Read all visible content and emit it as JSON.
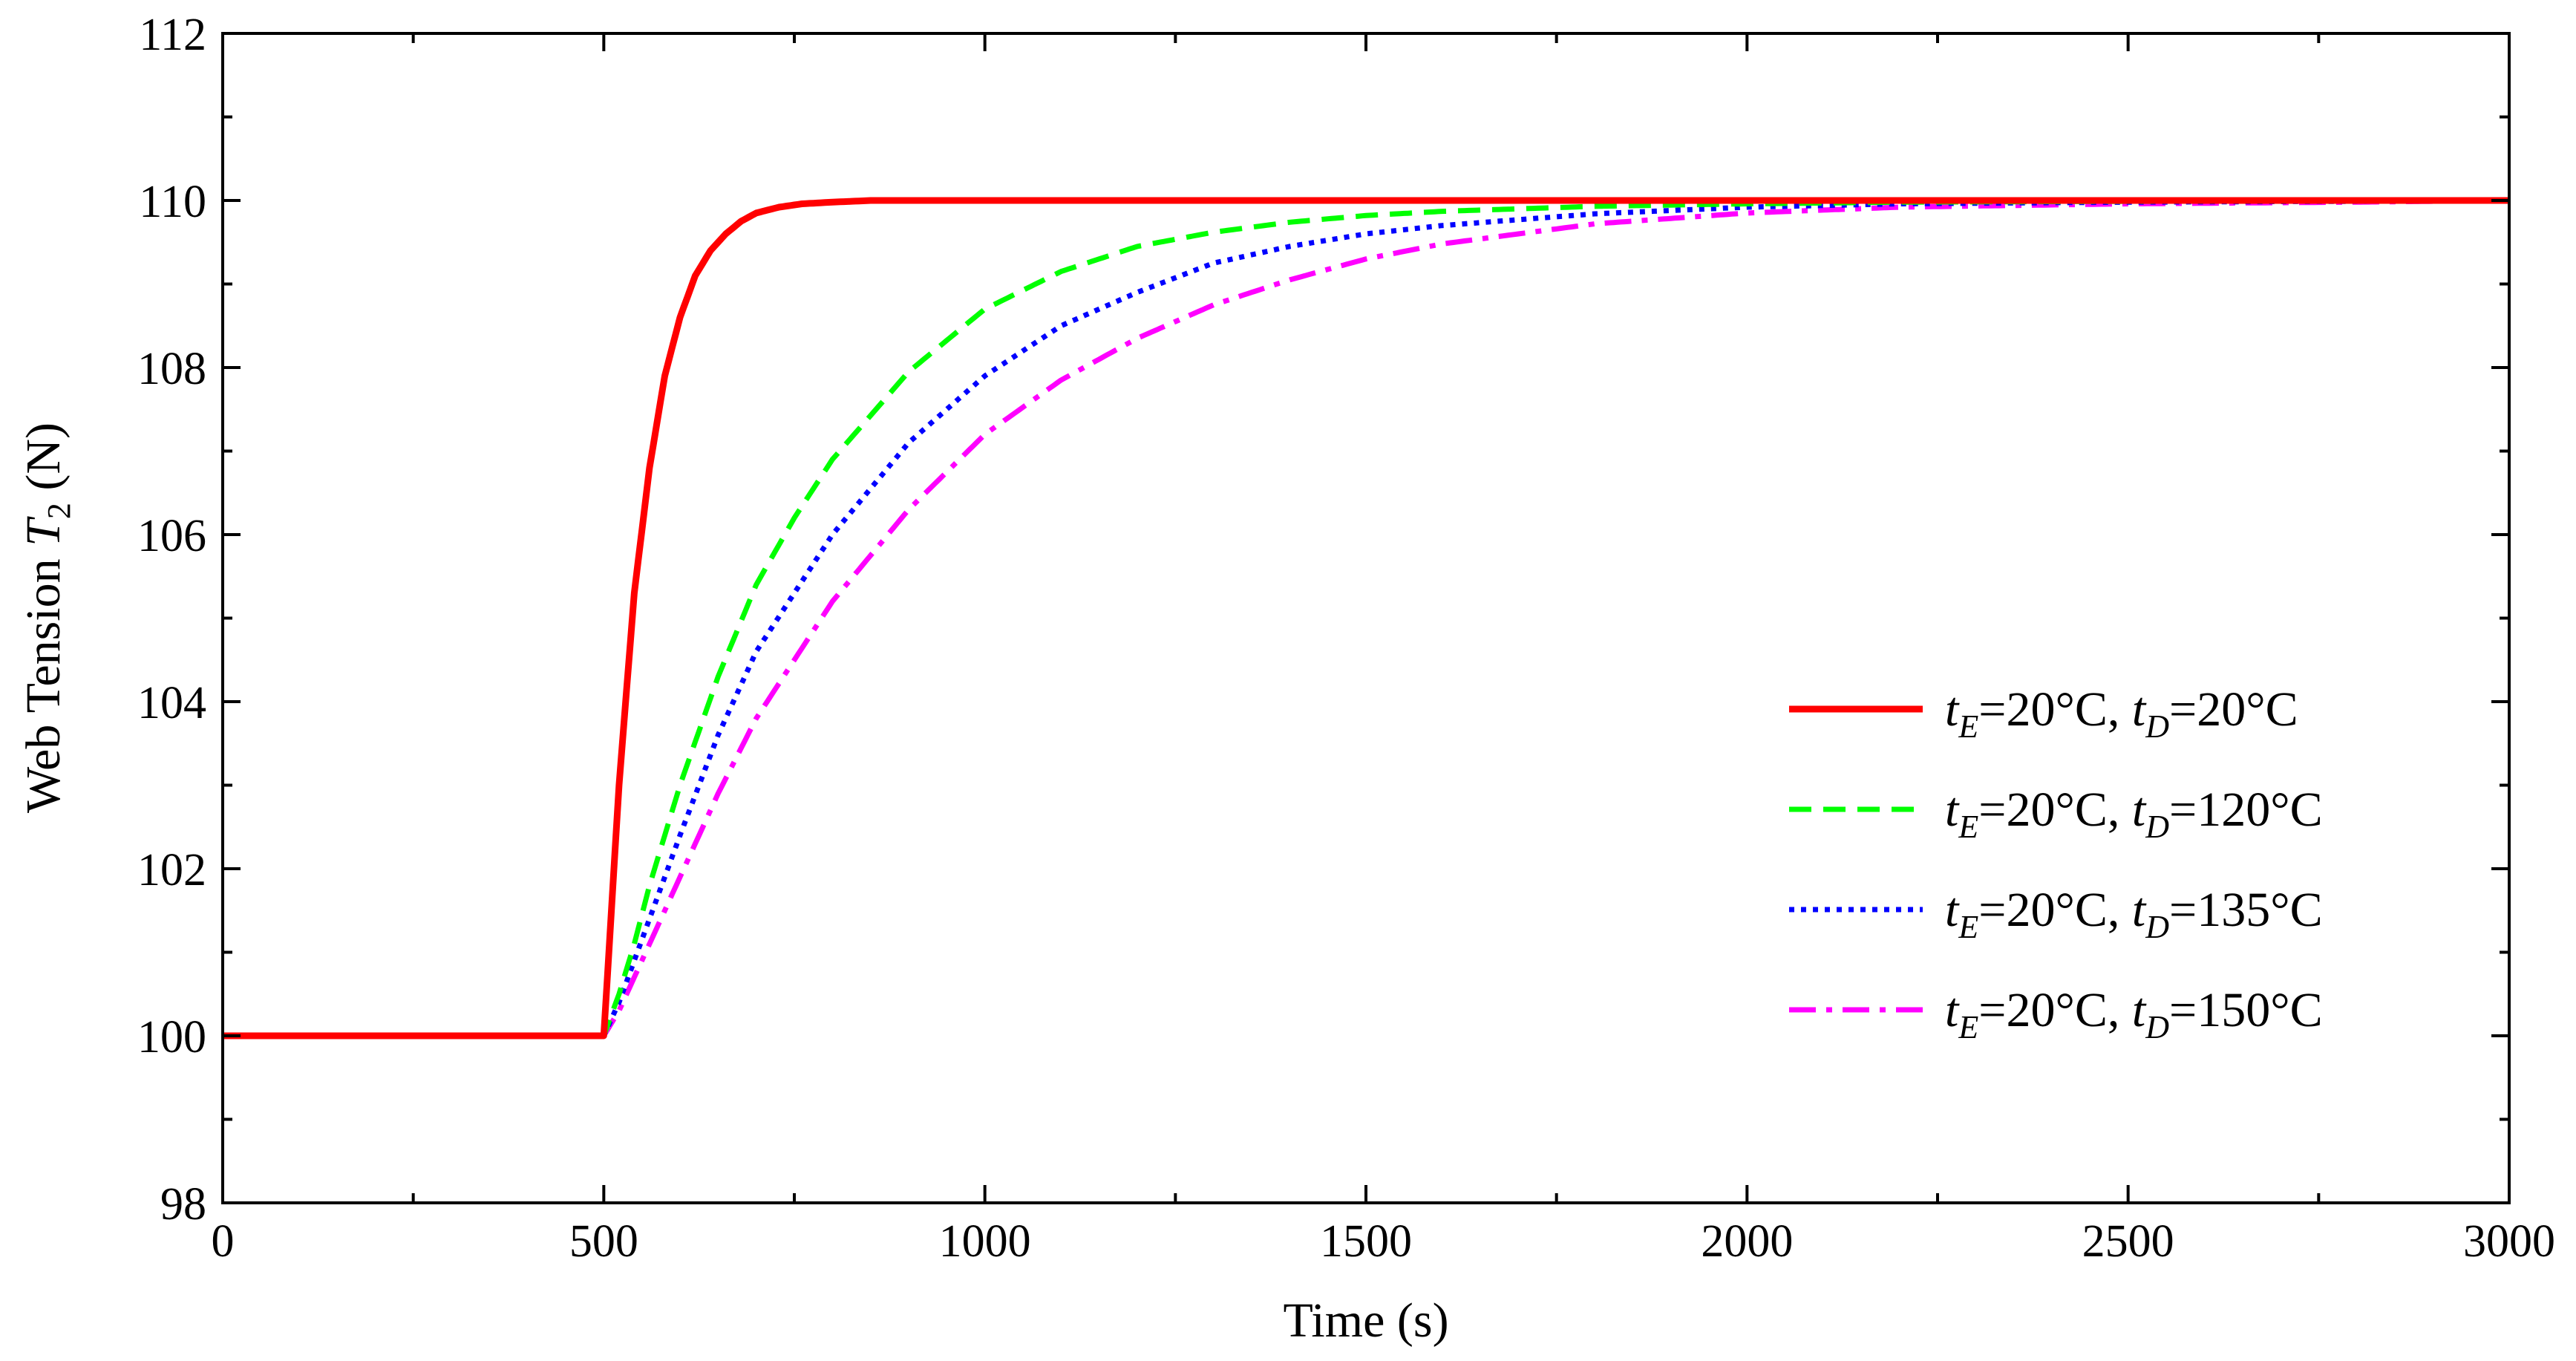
{
  "chart_data": {
    "type": "line",
    "title": "",
    "xlabel": "Time (s)",
    "ylabel": {
      "prefix": "Web Tension ",
      "symbol": "T",
      "subscript": "2",
      "suffix": " (N)"
    },
    "xlim": [
      0,
      3000
    ],
    "ylim": [
      98,
      112
    ],
    "xticks": [
      0,
      500,
      1000,
      1500,
      2000,
      2500,
      3000
    ],
    "yticks": [
      98,
      100,
      102,
      104,
      106,
      108,
      110,
      112
    ],
    "grid": false,
    "legend_position": "center-right",
    "step_time": 500,
    "initial_value": 100,
    "final_value": 110,
    "series": [
      {
        "name": "tE=20°C, tD=20°C",
        "label": {
          "a_sym": "t",
          "a_sub": "E",
          "a_val": "=20°C, ",
          "b_sym": "t",
          "b_sub": "D",
          "b_val": "=20°C"
        },
        "color": "#ff0000",
        "style": "solid",
        "x": [
          0,
          500,
          520,
          540,
          560,
          580,
          600,
          620,
          640,
          660,
          680,
          700,
          730,
          760,
          800,
          850,
          900,
          1000,
          1200,
          1500,
          2000,
          2500,
          3000
        ],
        "y": [
          100,
          100,
          103.0,
          105.3,
          106.8,
          107.9,
          108.6,
          109.1,
          109.4,
          109.6,
          109.75,
          109.85,
          109.92,
          109.96,
          109.98,
          110.0,
          110.0,
          110.0,
          110.0,
          110.0,
          110.0,
          110.0,
          110.0
        ]
      },
      {
        "name": "tE=20°C, tD=120°C",
        "label": {
          "a_sym": "t",
          "a_sub": "E",
          "a_val": "=20°C, ",
          "b_sym": "t",
          "b_sub": "D",
          "b_val": "=120°C"
        },
        "color": "#00ff00",
        "style": "dashed",
        "x": [
          0,
          500,
          520,
          540,
          560,
          600,
          650,
          700,
          750,
          800,
          900,
          1000,
          1100,
          1200,
          1300,
          1400,
          1500,
          1600,
          1800,
          2000,
          2200,
          2500,
          3000
        ],
        "y": [
          100,
          100,
          100.5,
          101.1,
          101.8,
          103.0,
          104.3,
          105.4,
          106.2,
          106.9,
          107.95,
          108.7,
          109.15,
          109.45,
          109.62,
          109.74,
          109.82,
          109.87,
          109.93,
          109.96,
          109.98,
          109.99,
          110.0
        ]
      },
      {
        "name": "tE=20°C, tD=135°C",
        "label": {
          "a_sym": "t",
          "a_sub": "E",
          "a_val": "=20°C, ",
          "b_sym": "t",
          "b_sub": "D",
          "b_val": "=135°C"
        },
        "color": "#0000ff",
        "style": "dotted",
        "x": [
          0,
          500,
          520,
          540,
          560,
          600,
          650,
          700,
          800,
          900,
          1000,
          1100,
          1200,
          1300,
          1400,
          1500,
          1600,
          1800,
          2000,
          2200,
          2500,
          2800,
          3000
        ],
        "y": [
          100,
          100,
          100.4,
          100.9,
          101.4,
          102.4,
          103.6,
          104.6,
          106.0,
          107.1,
          107.9,
          108.5,
          108.9,
          109.25,
          109.45,
          109.6,
          109.7,
          109.84,
          109.92,
          109.96,
          109.98,
          109.99,
          110.0
        ]
      },
      {
        "name": "tE=20°C, tD=150°C",
        "label": {
          "a_sym": "t",
          "a_sub": "E",
          "a_val": "=20°C, ",
          "b_sym": "t",
          "b_sub": "D",
          "b_val": "=150°C"
        },
        "color": "#ff00ff",
        "style": "dashdot",
        "x": [
          0,
          500,
          520,
          540,
          560,
          600,
          650,
          700,
          800,
          900,
          1000,
          1100,
          1200,
          1300,
          1400,
          1500,
          1600,
          1800,
          2000,
          2200,
          2500,
          2800,
          3000
        ],
        "y": [
          100,
          100,
          100.3,
          100.7,
          101.1,
          101.9,
          102.9,
          103.8,
          105.2,
          106.3,
          107.2,
          107.85,
          108.35,
          108.75,
          109.05,
          109.3,
          109.48,
          109.72,
          109.85,
          109.92,
          109.96,
          109.98,
          110.0
        ]
      }
    ]
  }
}
